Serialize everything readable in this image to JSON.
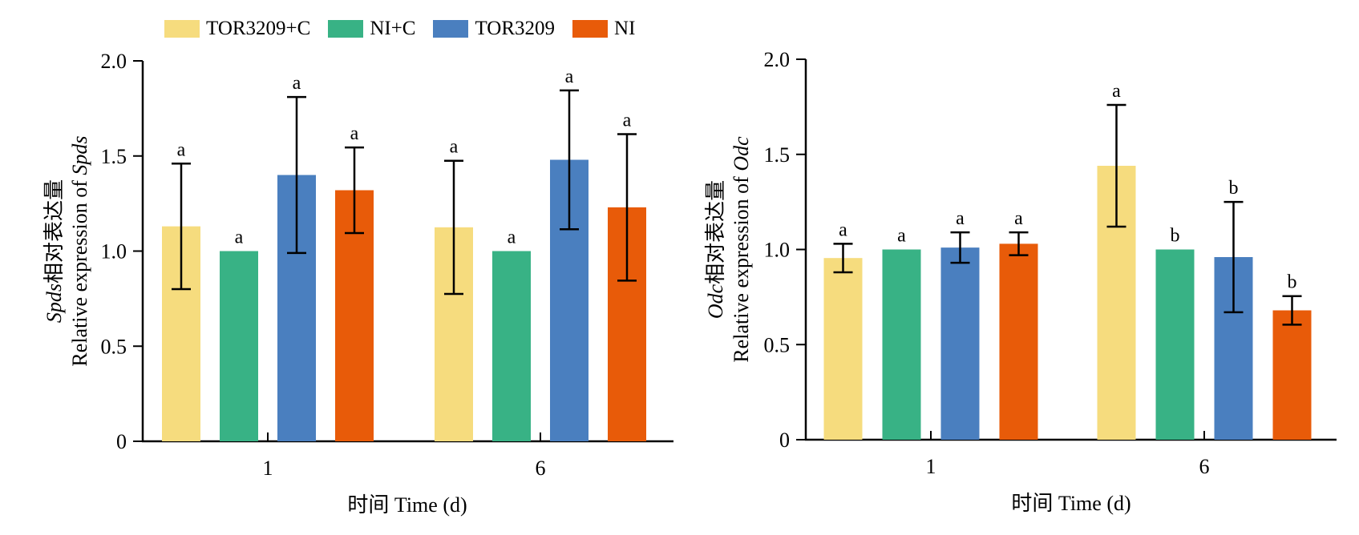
{
  "legend": {
    "items": [
      {
        "label": "TOR3209+C",
        "color": "#F6DC7E"
      },
      {
        "label": "NI+C",
        "color": "#38B285"
      },
      {
        "label": "TOR3209",
        "color": "#4A7FBF"
      },
      {
        "label": "NI",
        "color": "#E85B09"
      }
    ]
  },
  "chart_data": [
    {
      "type": "bar",
      "ylabel_italic": "Spds",
      "ylabel_cn": "相对表达量",
      "ylabel_en_prefix": "Relative expression of ",
      "ylabel_en_italic": "Spds",
      "xlabel": "时间 Time (d)",
      "categories": [
        "1",
        "6"
      ],
      "ylim": [
        0,
        2.0
      ],
      "yticks": [
        "0",
        "0.5",
        "1.0",
        "1.5",
        "2.0"
      ],
      "series": [
        {
          "name": "TOR3209+C",
          "values": [
            1.13,
            1.125
          ],
          "errors": [
            0.33,
            0.35
          ],
          "letters": [
            "a",
            "a"
          ]
        },
        {
          "name": "NI+C",
          "values": [
            1.0,
            1.0
          ],
          "errors": [
            0,
            0
          ],
          "letters": [
            "a",
            "a"
          ]
        },
        {
          "name": "TOR3209",
          "values": [
            1.4,
            1.48
          ],
          "errors": [
            0.41,
            0.365
          ],
          "letters": [
            "a",
            "a"
          ]
        },
        {
          "name": "NI",
          "values": [
            1.32,
            1.23
          ],
          "errors": [
            0.225,
            0.385
          ],
          "letters": [
            "a",
            "a"
          ]
        }
      ]
    },
    {
      "type": "bar",
      "ylabel_italic": "Odc",
      "ylabel_cn": "相对表达量",
      "ylabel_en_prefix": "Relative expression of ",
      "ylabel_en_italic": "Odc",
      "xlabel": "时间 Time (d)",
      "categories": [
        "1",
        "6"
      ],
      "ylim": [
        0,
        2.0
      ],
      "yticks": [
        "0",
        "0.5",
        "1.0",
        "1.5",
        "2.0"
      ],
      "series": [
        {
          "name": "TOR3209+C",
          "values": [
            0.955,
            1.44
          ],
          "errors": [
            0.075,
            0.32
          ],
          "letters": [
            "a",
            "a"
          ]
        },
        {
          "name": "NI+C",
          "values": [
            1.0,
            1.0
          ],
          "errors": [
            0,
            0
          ],
          "letters": [
            "a",
            "b"
          ]
        },
        {
          "name": "TOR3209",
          "values": [
            1.01,
            0.96
          ],
          "errors": [
            0.08,
            0.29
          ],
          "letters": [
            "a",
            "b"
          ]
        },
        {
          "name": "NI",
          "values": [
            1.03,
            0.68
          ],
          "errors": [
            0.06,
            0.075
          ],
          "letters": [
            "a",
            "b"
          ]
        }
      ]
    }
  ]
}
